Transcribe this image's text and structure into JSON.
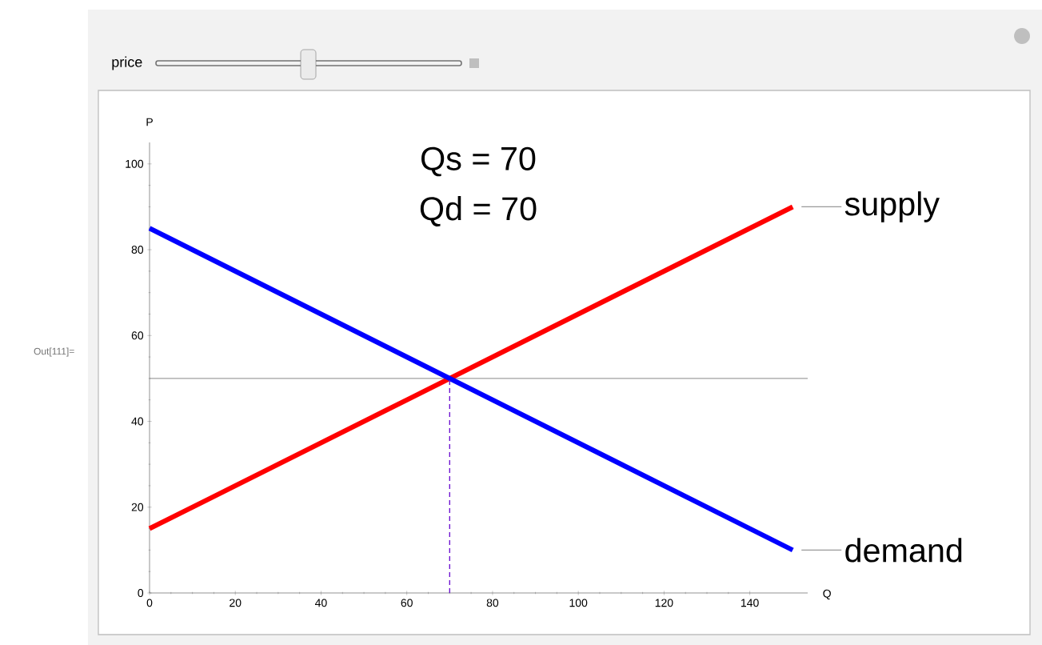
{
  "chart_data": {
    "type": "line",
    "xlabel": "Q",
    "ylabel": "P",
    "annotations": [
      "Qs = 70",
      "Qd = 70",
      "price",
      "Out[111]="
    ],
    "series": [
      {
        "name": "supply",
        "color": "#ff0000",
        "x": [
          0,
          150
        ],
        "values": [
          15,
          90
        ]
      },
      {
        "name": "demand",
        "color": "#0000ff",
        "x": [
          0,
          150
        ],
        "values": [
          85,
          10
        ]
      },
      {
        "color": "#6a0dd0",
        "x": [
          70,
          70
        ],
        "values": [
          0,
          50
        ],
        "line_style": "dashed"
      }
    ],
    "ref_lines": [
      {
        "axis": "y",
        "value": 50,
        "color": "#808080"
      }
    ],
    "xlim": [
      0,
      153.5
    ],
    "ylim": [
      0,
      105
    ],
    "xticks": [
      0,
      20,
      40,
      60,
      80,
      100,
      120,
      140
    ],
    "yticks": [
      0,
      20,
      40,
      60,
      80,
      100
    ],
    "grid": false,
    "marker": "none"
  }
}
